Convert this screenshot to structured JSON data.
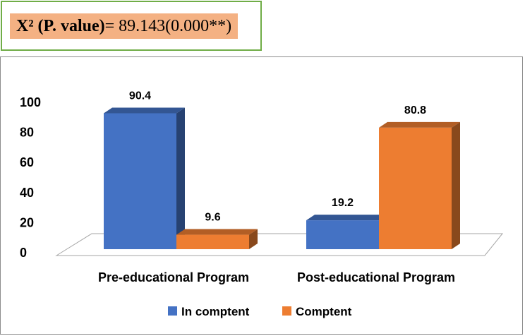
{
  "stat": {
    "prefix": "X² (P. value)",
    "value": " = 89.143(0.000**)"
  },
  "chart_data": {
    "type": "bar",
    "categories": [
      "Pre-educational Program",
      "Post-educational Program"
    ],
    "series": [
      {
        "name": "In comptent",
        "values": [
          90.4,
          19.2
        ],
        "color": "#4472c4"
      },
      {
        "name": "Comptent",
        "values": [
          9.6,
          80.8
        ],
        "color": "#ed7d31"
      }
    ],
    "yticks": [
      "0",
      "20",
      "40",
      "60",
      "80",
      "100"
    ],
    "ylim": [
      0,
      100
    ],
    "legend_position": "bottom",
    "style": "3d-column"
  }
}
